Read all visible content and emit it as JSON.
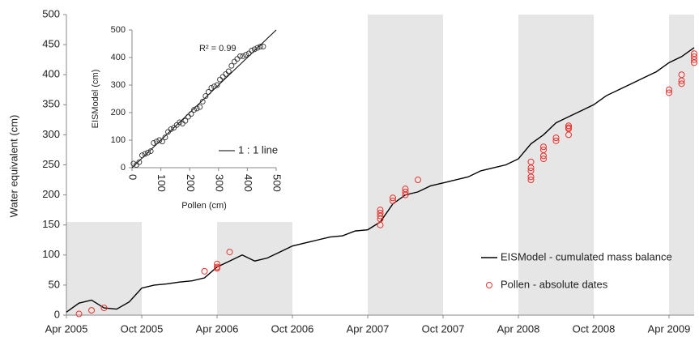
{
  "chart_data": [
    {
      "type": "line",
      "ylabel": "Water equivalent (cm)",
      "xlim": [
        "2005-04",
        "2009-06"
      ],
      "xticks": [
        {
          "value": "2005-04",
          "label": "Apr 2005"
        },
        {
          "value": "2005-10",
          "label": "Oct 2005"
        },
        {
          "value": "2006-04",
          "label": "Apr 2006"
        },
        {
          "value": "2006-10",
          "label": "Oct 2006"
        },
        {
          "value": "2007-04",
          "label": "Apr 2007"
        },
        {
          "value": "2007-10",
          "label": "Oct 2007"
        },
        {
          "value": "2008-04",
          "label": "Apr 2008"
        },
        {
          "value": "2008-10",
          "label": "Oct 2008"
        },
        {
          "value": "2009-04",
          "label": "Apr 2009"
        }
      ],
      "ylim": [
        0,
        500
      ],
      "yticks": [
        0,
        50,
        100,
        150,
        200,
        250,
        300,
        350,
        400,
        450,
        500
      ],
      "shaded_periods": [
        {
          "start": "2005-04",
          "end": "2005-10",
          "top": 155
        },
        {
          "start": "2006-04",
          "end": "2006-10",
          "top": 155
        },
        {
          "start": "2007-04",
          "end": "2007-10",
          "top": 500
        },
        {
          "start": "2008-04",
          "end": "2008-10",
          "top": 500
        },
        {
          "start": "2009-04",
          "end": "2009-06",
          "top": 500
        }
      ],
      "shade_color": "#e6e6e6",
      "legend": "lower right",
      "series": [
        {
          "name": "EISModel - cumulated mass balance",
          "color": "#000000",
          "marker": "line",
          "x": [
            "2005-04",
            "2005-05",
            "2005-06",
            "2005-07",
            "2005-08",
            "2005-09",
            "2005-10",
            "2005-11",
            "2005-12",
            "2006-01",
            "2006-02",
            "2006-03",
            "2006-04",
            "2006-05",
            "2006-06",
            "2006-07",
            "2006-08",
            "2006-09",
            "2006-10",
            "2006-11",
            "2006-12",
            "2007-01",
            "2007-02",
            "2007-03",
            "2007-04",
            "2007-05",
            "2007-06",
            "2007-07",
            "2007-08",
            "2007-09",
            "2007-10",
            "2007-11",
            "2007-12",
            "2008-01",
            "2008-02",
            "2008-03",
            "2008-04",
            "2008-05",
            "2008-06",
            "2008-07",
            "2008-08",
            "2008-09",
            "2008-10",
            "2008-11",
            "2008-12",
            "2009-01",
            "2009-02",
            "2009-03",
            "2009-04",
            "2009-05",
            "2009-06"
          ],
          "values": [
            5,
            20,
            25,
            12,
            10,
            22,
            45,
            50,
            52,
            55,
            57,
            62,
            80,
            90,
            100,
            90,
            95,
            105,
            115,
            120,
            125,
            130,
            132,
            140,
            142,
            155,
            185,
            200,
            205,
            215,
            220,
            225,
            230,
            240,
            245,
            250,
            260,
            285,
            300,
            320,
            330,
            340,
            350,
            365,
            375,
            385,
            395,
            405,
            420,
            430,
            445
          ]
        },
        {
          "name": "Pollen - absolute dates",
          "color": "#e8302a",
          "marker": "circle",
          "x": [
            "2005-05",
            "2005-06",
            "2005-07",
            "2006-03",
            "2006-04",
            "2006-04",
            "2006-04",
            "2006-05",
            "2007-05",
            "2007-05",
            "2007-05",
            "2007-05",
            "2007-05",
            "2007-06",
            "2007-06",
            "2007-07",
            "2007-07",
            "2007-07",
            "2007-08",
            "2008-05",
            "2008-05",
            "2008-05",
            "2008-05",
            "2008-05",
            "2008-06",
            "2008-06",
            "2008-06",
            "2008-06",
            "2008-07",
            "2008-07",
            "2008-08",
            "2008-08",
            "2008-08",
            "2008-08",
            "2009-04",
            "2009-04",
            "2009-05",
            "2009-05",
            "2009-05",
            "2009-06",
            "2009-06",
            "2009-06",
            "2009-06"
          ],
          "values": [
            2,
            8,
            12,
            73,
            85,
            80,
            78,
            105,
            150,
            160,
            165,
            170,
            175,
            195,
            190,
            200,
            205,
            210,
            225,
            225,
            230,
            240,
            245,
            255,
            260,
            265,
            275,
            280,
            290,
            295,
            300,
            310,
            312,
            315,
            370,
            375,
            385,
            390,
            400,
            420,
            425,
            430,
            435
          ]
        }
      ]
    },
    {
      "type": "scatter",
      "xlabel": "Pollen (cm)",
      "ylabel": "EISModel (cm)",
      "annotation": "R² = 0.99",
      "xlim": [
        0,
        500
      ],
      "ylim": [
        0,
        500
      ],
      "xticks": [
        0,
        100,
        200,
        300,
        400,
        500
      ],
      "yticks": [
        0,
        100,
        200,
        300,
        400,
        500
      ],
      "color": "#333333",
      "x": [
        5,
        15,
        25,
        35,
        45,
        55,
        65,
        75,
        85,
        95,
        105,
        115,
        125,
        135,
        145,
        155,
        165,
        175,
        185,
        195,
        205,
        215,
        225,
        235,
        245,
        255,
        265,
        275,
        285,
        295,
        305,
        315,
        325,
        335,
        345,
        355,
        365,
        375,
        385,
        395,
        405,
        415,
        425,
        435,
        445,
        455
      ],
      "values": [
        15,
        10,
        20,
        45,
        50,
        55,
        60,
        90,
        95,
        100,
        95,
        110,
        130,
        140,
        145,
        155,
        165,
        160,
        170,
        185,
        195,
        210,
        215,
        220,
        240,
        260,
        275,
        290,
        295,
        300,
        320,
        330,
        340,
        350,
        370,
        385,
        395,
        405,
        405,
        410,
        415,
        425,
        430,
        435,
        440,
        440
      ],
      "ref_line": {
        "name": "1 : 1 line",
        "color": "#000000",
        "x": [
          0,
          500
        ],
        "values": [
          0,
          500
        ]
      },
      "legend": "lower right"
    }
  ]
}
